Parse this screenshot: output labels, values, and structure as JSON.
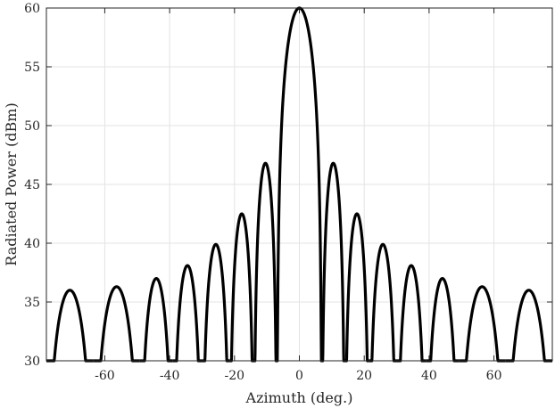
{
  "chart_data": {
    "type": "line",
    "xlabel": "Azimuth (deg.)",
    "ylabel": "Radiated Power (dBm)",
    "xlim": [
      -78,
      78
    ],
    "ylim": [
      30,
      60
    ],
    "xticks": [
      -60,
      -40,
      -20,
      0,
      20,
      40,
      60
    ],
    "yticks": [
      30,
      35,
      40,
      45,
      50,
      55,
      60
    ],
    "grid": true,
    "line_color": "#000000",
    "pattern": {
      "peak_dBm": 60,
      "main_lobe_null_deg": 6.9,
      "side_lobes": [
        {
          "azimuth": -70,
          "peak": 36.0
        },
        {
          "azimuth": -55,
          "peak": 36.3
        },
        {
          "azimuth": -43.5,
          "peak": 37.0
        },
        {
          "azimuth": -34.5,
          "peak": 38.1
        },
        {
          "azimuth": -25.8,
          "peak": 39.9
        },
        {
          "azimuth": -17.7,
          "peak": 42.5
        },
        {
          "azimuth": -10,
          "peak": 46.8
        },
        {
          "azimuth": 10,
          "peak": 46.8
        },
        {
          "azimuth": 17.7,
          "peak": 42.5
        },
        {
          "azimuth": 25.8,
          "peak": 39.9
        },
        {
          "azimuth": 34.5,
          "peak": 38.1
        },
        {
          "azimuth": 43.5,
          "peak": 37.0
        },
        {
          "azimuth": 55,
          "peak": 36.3
        },
        {
          "azimuth": 70,
          "peak": 36.0
        }
      ],
      "nulls": [
        -78,
        -63.5,
        -49.2,
        -39,
        -30,
        -21.5,
        -14,
        -6.9,
        6.9,
        14,
        21.5,
        30,
        39,
        49.2,
        63.5,
        78
      ]
    }
  }
}
